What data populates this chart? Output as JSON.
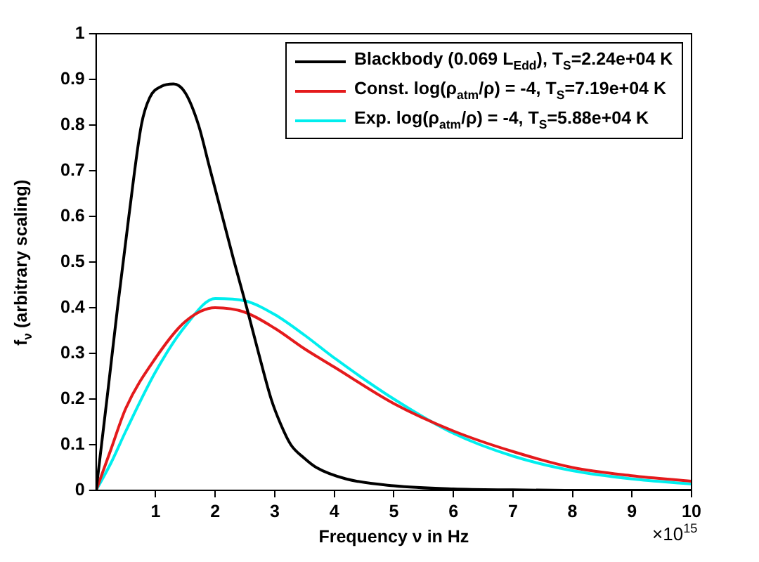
{
  "chart_data": {
    "type": "line",
    "xlabel": "Frequency ν in Hz",
    "ylabel": "f$_{ν}$ (arbitrary scaling)",
    "annotations": [
      "×10$^{15}$"
    ],
    "xlim": [
      0,
      10
    ],
    "xticks": [
      1,
      2,
      3,
      4,
      5,
      6,
      7,
      8,
      9,
      10
    ],
    "ylim": [
      0,
      1
    ],
    "yticks": [
      0,
      0.1,
      0.2,
      0.3,
      0.4,
      0.5,
      0.6,
      0.7,
      0.8,
      0.9,
      1
    ],
    "grid": false,
    "legend": "top right",
    "marker": "none",
    "line_style": "solid",
    "series": [
      {
        "name": "Blackbody (0.069 L$_{Edd}$), T$_{S}$=2.24e+04 K",
        "color": "#000000",
        "x": [
          0,
          0.2,
          0.36,
          0.55,
          0.76,
          0.9,
          1.1,
          1.3,
          1.5,
          1.72,
          1.9,
          2.12,
          2.32,
          2.53,
          2.73,
          2.94,
          3.1,
          3.27,
          3.5,
          3.7,
          4.2,
          5,
          6,
          7,
          8,
          10
        ],
        "values": [
          0,
          0.22,
          0.4,
          0.6,
          0.8,
          0.86,
          0.885,
          0.89,
          0.87,
          0.8,
          0.71,
          0.6,
          0.5,
          0.4,
          0.3,
          0.2,
          0.145,
          0.1,
          0.07,
          0.05,
          0.025,
          0.01,
          0.003,
          0.001,
          0,
          0
        ]
      },
      {
        "name": "Const. log(ρ$_{atm}$/ρ) = -4, T$_{S}$=7.19e+04 K",
        "color": "#e41a1c",
        "x": [
          0,
          0.25,
          0.5,
          1,
          1.5,
          2,
          2.5,
          3,
          3.5,
          4,
          5,
          6,
          7,
          8,
          9,
          10
        ],
        "values": [
          0,
          0.09,
          0.18,
          0.29,
          0.37,
          0.4,
          0.39,
          0.355,
          0.31,
          0.27,
          0.19,
          0.13,
          0.085,
          0.05,
          0.032,
          0.02
        ]
      },
      {
        "name": "Exp. log(ρ$_{atm}$/ρ) = -4, T$_{S}$=5.88e+04 K",
        "color": "#00eeee",
        "x": [
          0,
          0.25,
          0.5,
          1,
          1.5,
          2,
          2.5,
          3,
          3.5,
          4,
          5,
          6,
          7,
          8,
          9,
          10
        ],
        "values": [
          0,
          0.06,
          0.13,
          0.26,
          0.36,
          0.42,
          0.415,
          0.385,
          0.34,
          0.29,
          0.2,
          0.125,
          0.075,
          0.043,
          0.025,
          0.014
        ]
      }
    ]
  }
}
